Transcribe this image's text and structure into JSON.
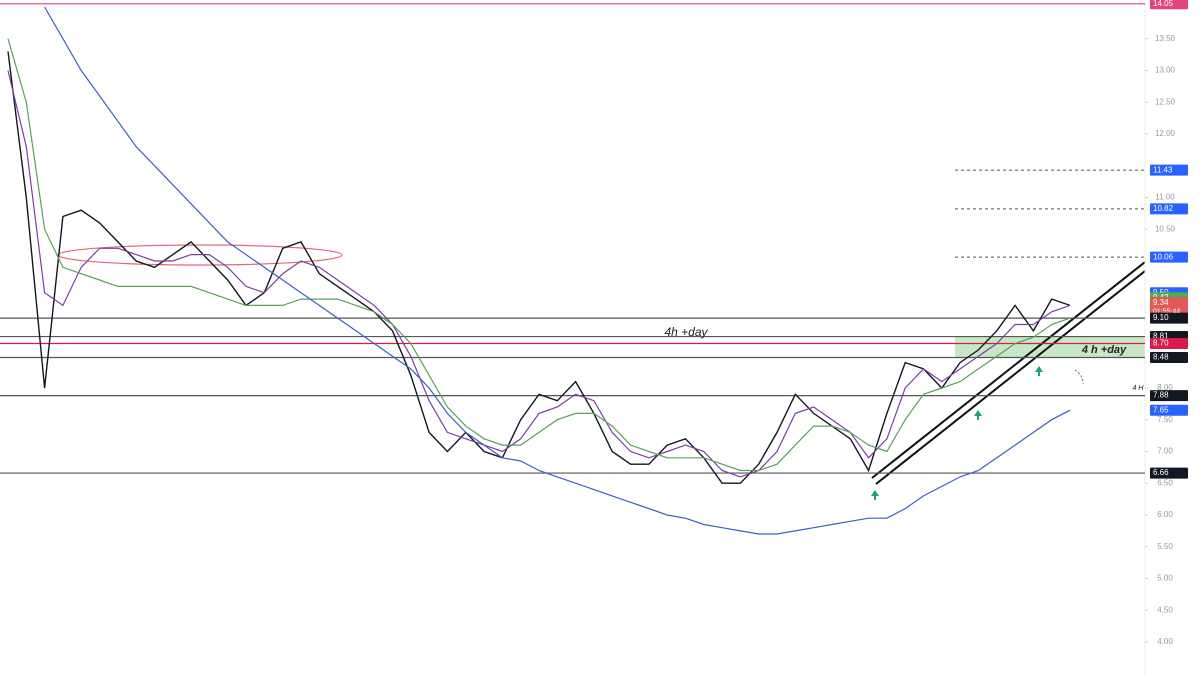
{
  "chart_data": {
    "type": "line",
    "ylim": [
      3.48,
      14.11
    ],
    "yticks": [
      {
        "value": 4,
        "label": "4.00"
      },
      {
        "value": 4.5,
        "label": "4.50"
      },
      {
        "value": 5,
        "label": "5.00"
      },
      {
        "value": 5.5,
        "label": "5.50"
      },
      {
        "value": 6,
        "label": "6.00"
      },
      {
        "value": 6.5,
        "label": "6.50"
      },
      {
        "value": 7,
        "label": "7.00"
      },
      {
        "value": 7.5,
        "label": "7.50"
      },
      {
        "value": 8,
        "label": "8.00"
      },
      {
        "value": 10.5,
        "label": "10.50"
      },
      {
        "value": 11,
        "label": "11.00"
      },
      {
        "value": 12,
        "label": "12.00"
      },
      {
        "value": 12.5,
        "label": "12.50"
      },
      {
        "value": 13,
        "label": "13.00"
      },
      {
        "value": 13.5,
        "label": "13.50"
      }
    ],
    "series": [
      {
        "color": "#131722",
        "values": [
          13.3,
          11.0,
          8.0,
          10.7,
          10.8,
          10.6,
          10.3,
          10.0,
          9.9,
          10.1,
          10.3,
          10.0,
          9.7,
          9.3,
          9.5,
          10.2,
          10.3,
          9.8,
          9.6,
          9.4,
          9.2,
          8.9,
          8.2,
          7.3,
          7.0,
          7.3,
          7.0,
          6.9,
          7.5,
          7.9,
          7.8,
          8.1,
          7.6,
          7.0,
          6.8,
          6.8,
          7.1,
          7.2,
          6.9,
          6.5,
          6.5,
          6.8,
          7.3,
          7.9,
          7.6,
          7.4,
          7.2,
          6.7,
          7.6,
          8.4,
          8.3,
          8.0,
          8.4,
          8.6,
          8.9,
          9.3,
          8.9,
          9.4,
          9.3
        ]
      },
      {
        "color": "#7b3fa0",
        "values": [
          13.0,
          11.8,
          9.5,
          9.3,
          9.9,
          10.2,
          10.2,
          10.1,
          10.0,
          10.0,
          10.1,
          10.1,
          9.9,
          9.6,
          9.5,
          9.8,
          10.0,
          9.9,
          9.7,
          9.5,
          9.3,
          9.0,
          8.5,
          7.8,
          7.3,
          7.2,
          7.1,
          7.0,
          7.2,
          7.6,
          7.7,
          7.9,
          7.8,
          7.3,
          7.0,
          6.9,
          7.0,
          7.1,
          7.0,
          6.7,
          6.6,
          6.7,
          7.0,
          7.6,
          7.7,
          7.5,
          7.3,
          6.9,
          7.2,
          8.0,
          8.3,
          8.1,
          8.3,
          8.5,
          8.7,
          9.0,
          9.0,
          9.2,
          9.3
        ]
      },
      {
        "color": "#5aa05a",
        "values": [
          13.5,
          12.5,
          10.5,
          9.9,
          9.8,
          9.7,
          9.6,
          9.6,
          9.6,
          9.6,
          9.6,
          9.5,
          9.4,
          9.3,
          9.3,
          9.3,
          9.4,
          9.4,
          9.4,
          9.3,
          9.2,
          9.0,
          8.7,
          8.2,
          7.7,
          7.4,
          7.2,
          7.1,
          7.1,
          7.3,
          7.5,
          7.6,
          7.6,
          7.4,
          7.1,
          7.0,
          6.9,
          6.9,
          6.9,
          6.8,
          6.7,
          6.7,
          6.8,
          7.1,
          7.4,
          7.4,
          7.3,
          7.1,
          7.0,
          7.5,
          7.9,
          8.0,
          8.1,
          8.3,
          8.5,
          8.7,
          8.8,
          9.0,
          9.1
        ]
      },
      {
        "color": "#3d5fc4",
        "values": [
          null,
          null,
          14.0,
          13.5,
          13.0,
          12.6,
          12.2,
          11.8,
          11.5,
          11.2,
          10.9,
          10.6,
          10.3,
          10.1,
          9.9,
          9.7,
          9.5,
          9.3,
          9.1,
          8.9,
          8.7,
          8.5,
          8.3,
          8.0,
          7.6,
          7.3,
          7.1,
          6.9,
          6.85,
          6.7,
          6.6,
          6.5,
          6.4,
          6.3,
          6.2,
          6.1,
          6.0,
          5.95,
          5.85,
          5.8,
          5.75,
          5.7,
          5.7,
          5.75,
          5.8,
          5.85,
          5.9,
          5.95,
          5.95,
          6.1,
          6.3,
          6.45,
          6.6,
          6.7,
          6.9,
          7.1,
          7.3,
          7.5,
          7.65
        ]
      }
    ],
    "price_tags": [
      {
        "value": 14.05,
        "label": "14.05",
        "color": "#e0457b",
        "line": "solid"
      },
      {
        "value": 11.43,
        "label": "11.43",
        "color": "#2962ff",
        "line": "dashed"
      },
      {
        "value": 10.82,
        "label": "10.82",
        "color": "#2962ff",
        "line": "dashed"
      },
      {
        "value": 10.06,
        "label": "10.06",
        "color": "#2962ff",
        "line": "dashed"
      },
      {
        "value": 9.5,
        "label": "9.50",
        "color": "#2962ff",
        "line": "none"
      },
      {
        "value": 9.42,
        "label": "9.42",
        "color": "#4caf50",
        "line": "none"
      },
      {
        "value": 9.34,
        "label": "9.34",
        "color": "#e05a5a",
        "line": "none",
        "countdown": "01:55:44"
      },
      {
        "value": 9.1,
        "label": "9.10",
        "color": "#131722",
        "line": "solid"
      },
      {
        "value": 8.81,
        "label": "8.81",
        "color": "#131722",
        "line": "solid"
      },
      {
        "value": 8.7,
        "label": "8.70",
        "color": "#d81b4a",
        "line": "solid"
      },
      {
        "value": 8.48,
        "label": "8.48",
        "color": "#131722",
        "line": "solid"
      },
      {
        "value": 7.88,
        "label": "7.88",
        "color": "#131722",
        "line": "solid"
      },
      {
        "value": 7.65,
        "label": "7.65",
        "color": "#2962ff",
        "line": "none"
      },
      {
        "value": 6.66,
        "label": "6.66",
        "color": "#131722",
        "line": "solid"
      }
    ],
    "annotations": [
      "4h +day",
      "4 h +day",
      "4 H"
    ]
  }
}
